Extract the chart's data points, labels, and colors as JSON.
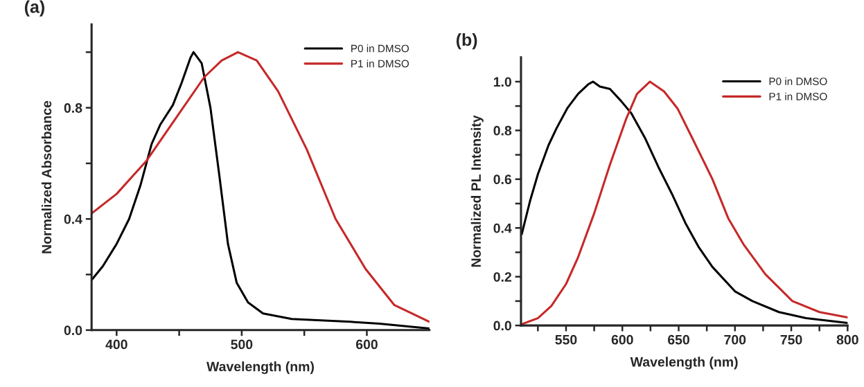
{
  "chart_data": [
    {
      "type": "line",
      "title": "(a)",
      "xlabel": "Wavelength (nm)",
      "ylabel": "Normalized Absorbance",
      "xlim": [
        380,
        650
      ],
      "ylim": [
        0,
        1.1
      ],
      "xticks": [
        400,
        {
          "value": 450,
          "label": null
        },
        500,
        {
          "value": 550,
          "label": null
        },
        600
      ],
      "yticks": [
        {
          "value": 0,
          "label": "0.0"
        },
        {
          "value": 0.2,
          "label": null
        },
        0.4,
        {
          "value": 0.6,
          "label": null
        },
        0.8,
        {
          "value": 1.0,
          "label": null
        }
      ],
      "legend": "top right",
      "grid": false,
      "line_style": "solid",
      "series": [
        {
          "name": "P0 in DMSO",
          "color": "#000000",
          "x": [
            380,
            389,
            400,
            410,
            419,
            428,
            435,
            445,
            452,
            459,
            461.5,
            468,
            475,
            482,
            489,
            496,
            505,
            517,
            540,
            587,
            610,
            650
          ],
          "values": [
            0.18,
            0.23,
            0.31,
            0.4,
            0.52,
            0.67,
            0.74,
            0.81,
            0.89,
            0.98,
            1.0,
            0.96,
            0.8,
            0.56,
            0.31,
            0.17,
            0.1,
            0.06,
            0.04,
            0.03,
            0.023,
            0.006
          ]
        },
        {
          "name": "P1 in DMSO",
          "color": "#c62828",
          "x": [
            380,
            400,
            424,
            447,
            470,
            484,
            497,
            512,
            529,
            552,
            575,
            599,
            622,
            650
          ],
          "values": [
            0.42,
            0.49,
            0.61,
            0.76,
            0.91,
            0.97,
            1.0,
            0.97,
            0.86,
            0.65,
            0.4,
            0.22,
            0.09,
            0.03
          ]
        }
      ]
    },
    {
      "type": "line",
      "title": "(b)",
      "xlabel": "Wavelength (nm)",
      "ylabel": "Normalized PL Intensity",
      "xlim": [
        510,
        800
      ],
      "ylim": [
        0,
        1.1
      ],
      "xticks": [
        {
          "value": 525,
          "label": null
        },
        550,
        {
          "value": 575,
          "label": null
        },
        600,
        {
          "value": 625,
          "label": null
        },
        650,
        {
          "value": 675,
          "label": null
        },
        700,
        {
          "value": 725,
          "label": null
        },
        750,
        {
          "value": 775,
          "label": null
        },
        800
      ],
      "yticks": [
        {
          "value": 0,
          "label": "0.0"
        },
        {
          "value": 0.1,
          "label": null
        },
        0.2,
        {
          "value": 0.3,
          "label": null
        },
        0.4,
        {
          "value": 0.5,
          "label": null
        },
        0.6,
        {
          "value": 0.7,
          "label": null
        },
        0.8,
        {
          "value": 0.9,
          "label": null
        },
        {
          "value": 1.0,
          "label": "1.0"
        }
      ],
      "legend": "top right",
      "grid": false,
      "line_style": "solid",
      "series": [
        {
          "name": "P0 in DMSO",
          "color": "#000000",
          "x": [
            510.7,
            518,
            525,
            534.5,
            541.7,
            551,
            560.7,
            570,
            574,
            580,
            589,
            599,
            608,
            620,
            632,
            644,
            656,
            668,
            680,
            700,
            715.5,
            739,
            763,
            800
          ],
          "values": [
            0.375,
            0.51,
            0.62,
            0.74,
            0.81,
            0.89,
            0.95,
            0.99,
            1.0,
            0.98,
            0.97,
            0.92,
            0.87,
            0.77,
            0.65,
            0.54,
            0.42,
            0.32,
            0.24,
            0.14,
            0.1,
            0.055,
            0.03,
            0.01
          ]
        },
        {
          "name": "P1 in DMSO",
          "color": "#c62828",
          "x": [
            510.7,
            525,
            537,
            550,
            560.7,
            575,
            589,
            603.6,
            613,
            624.5,
            637,
            649,
            663,
            680,
            694,
            708,
            727,
            751,
            775,
            800
          ],
          "values": [
            0.005,
            0.03,
            0.08,
            0.17,
            0.28,
            0.46,
            0.66,
            0.85,
            0.95,
            1.0,
            0.96,
            0.89,
            0.76,
            0.6,
            0.44,
            0.33,
            0.21,
            0.1,
            0.055,
            0.033
          ]
        }
      ]
    }
  ]
}
